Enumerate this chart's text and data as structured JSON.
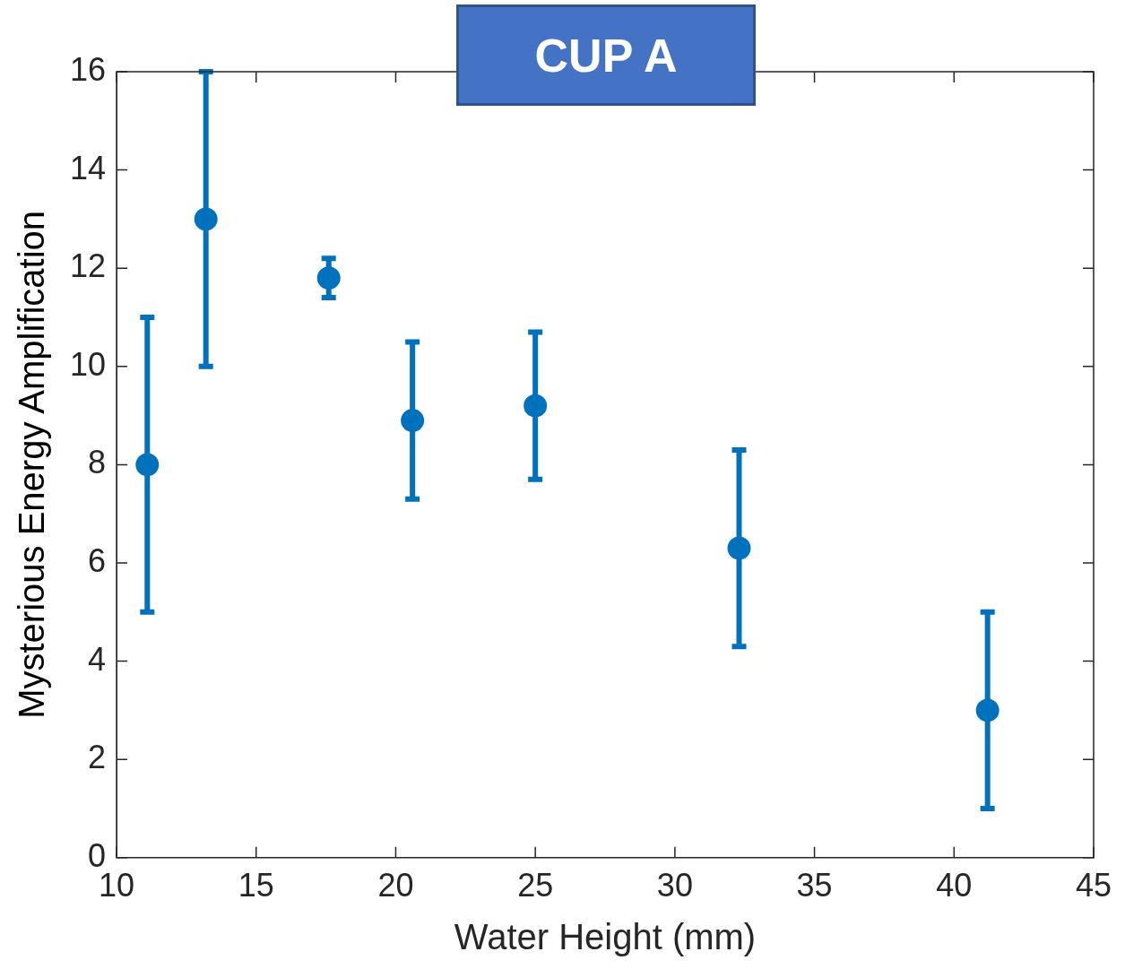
{
  "chart_data": {
    "type": "scatter",
    "title": "CUP A",
    "xlabel": "Water Height (mm)",
    "ylabel": "Mysterious Energy Amplification",
    "x": [
      11.1,
      13.2,
      17.6,
      20.6,
      25.0,
      32.3,
      41.2
    ],
    "series": [
      {
        "color": "#0072bd",
        "values": [
          8.0,
          13.0,
          11.8,
          8.9,
          9.2,
          6.3,
          3.0
        ],
        "errors": [
          3.0,
          3.0,
          0.4,
          1.6,
          1.5,
          2.0,
          2.0
        ]
      }
    ],
    "xlim": [
      10,
      45
    ],
    "xticks": [
      10,
      15,
      20,
      25,
      30,
      35,
      40,
      45
    ],
    "ylim": [
      0,
      16
    ],
    "yticks": [
      0,
      2,
      4,
      6,
      8,
      10,
      12,
      14,
      16
    ],
    "grid": false,
    "legend": false,
    "marker": "circle"
  }
}
